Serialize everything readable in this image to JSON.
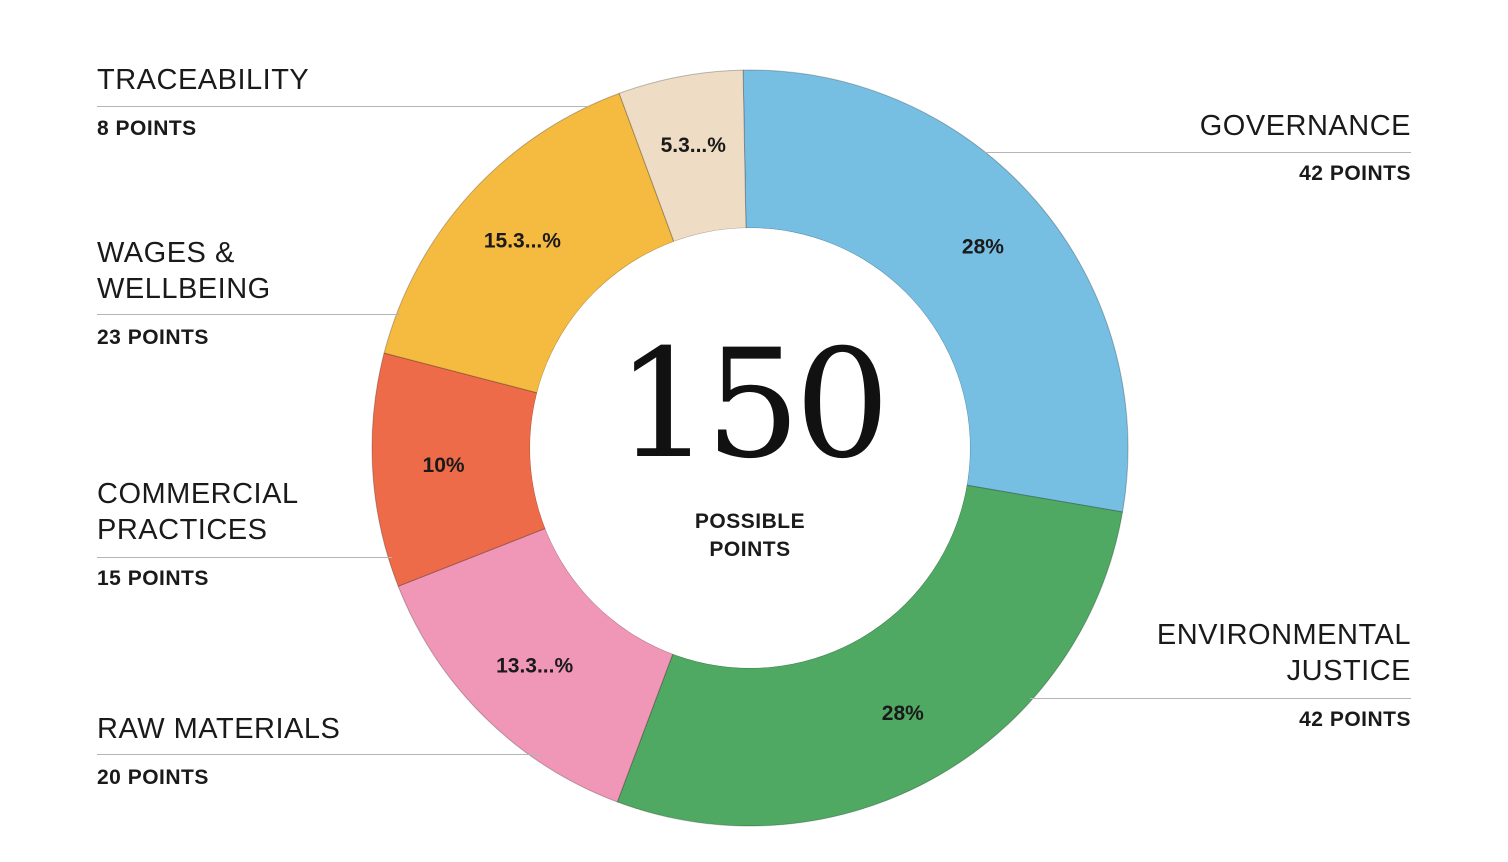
{
  "chart_data": {
    "type": "pie",
    "center": {
      "value": "150",
      "label_line1": "POSSIBLE",
      "label_line2": "POINTS"
    },
    "slices": [
      {
        "name": "GOVERNANCE",
        "name_lines": [
          "GOVERNANCE"
        ],
        "points": 42,
        "points_label": "42 POINTS",
        "percent_label": "28%",
        "color": "#76bee2"
      },
      {
        "name": "ENVIRONMENTAL JUSTICE",
        "name_lines": [
          "ENVIRONMENTAL",
          "JUSTICE"
        ],
        "points": 42,
        "points_label": "42 POINTS",
        "percent_label": "28%",
        "color": "#4fa963"
      },
      {
        "name": "RAW MATERIALS",
        "name_lines": [
          "RAW MATERIALS"
        ],
        "points": 20,
        "points_label": "20 POINTS",
        "percent_label": "13.3...%",
        "color": "#f096b6"
      },
      {
        "name": "COMMERCIAL PRACTICES",
        "name_lines": [
          "COMMERCIAL",
          "PRACTICES"
        ],
        "points": 15,
        "points_label": "15 POINTS",
        "percent_label": "10%",
        "color": "#ee6b4a"
      },
      {
        "name": "WAGES & WELLBEING",
        "name_lines": [
          "WAGES &",
          "WELLBEING"
        ],
        "points": 23,
        "points_label": "23 POINTS",
        "percent_label": "15.3...%",
        "color": "#f5bb40"
      },
      {
        "name": "TRACEABILITY",
        "name_lines": [
          "TRACEABILITY"
        ],
        "points": 8,
        "points_label": "8 POINTS",
        "percent_label": "5.3...%",
        "color": "#eedcc4"
      }
    ]
  }
}
